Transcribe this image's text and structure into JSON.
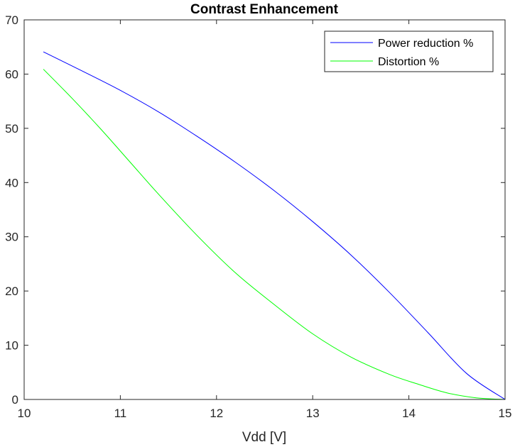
{
  "chart_data": {
    "type": "line",
    "title": "Contrast Enhancement",
    "xlabel": "Vdd [V]",
    "ylabel": "",
    "xlim": [
      10,
      15
    ],
    "ylim": [
      0,
      70
    ],
    "xticks": [
      10,
      11,
      12,
      13,
      14,
      15
    ],
    "yticks": [
      0,
      10,
      20,
      30,
      40,
      50,
      60,
      70
    ],
    "grid": false,
    "legend_position": "top-right",
    "series": [
      {
        "name": "Power reduction %",
        "color": "#0000ff",
        "x": [
          10.2,
          10.6,
          11.0,
          11.4,
          11.8,
          12.2,
          12.6,
          13.0,
          13.4,
          13.8,
          14.2,
          14.6,
          15.0
        ],
        "y": [
          64.1,
          60.6,
          57.0,
          53.0,
          48.5,
          43.7,
          38.5,
          32.8,
          26.6,
          19.7,
          12.3,
          4.8,
          0.0
        ]
      },
      {
        "name": "Distortion %",
        "color": "#00ff00",
        "x": [
          10.2,
          10.5,
          10.8,
          11.1,
          11.4,
          11.8,
          12.2,
          12.6,
          13.0,
          13.4,
          13.8,
          14.1,
          14.4,
          14.7,
          15.0
        ],
        "y": [
          60.9,
          55.5,
          49.8,
          43.8,
          37.8,
          30.2,
          23.3,
          17.5,
          12.1,
          7.8,
          4.6,
          2.8,
          1.2,
          0.3,
          0.0
        ]
      }
    ]
  }
}
